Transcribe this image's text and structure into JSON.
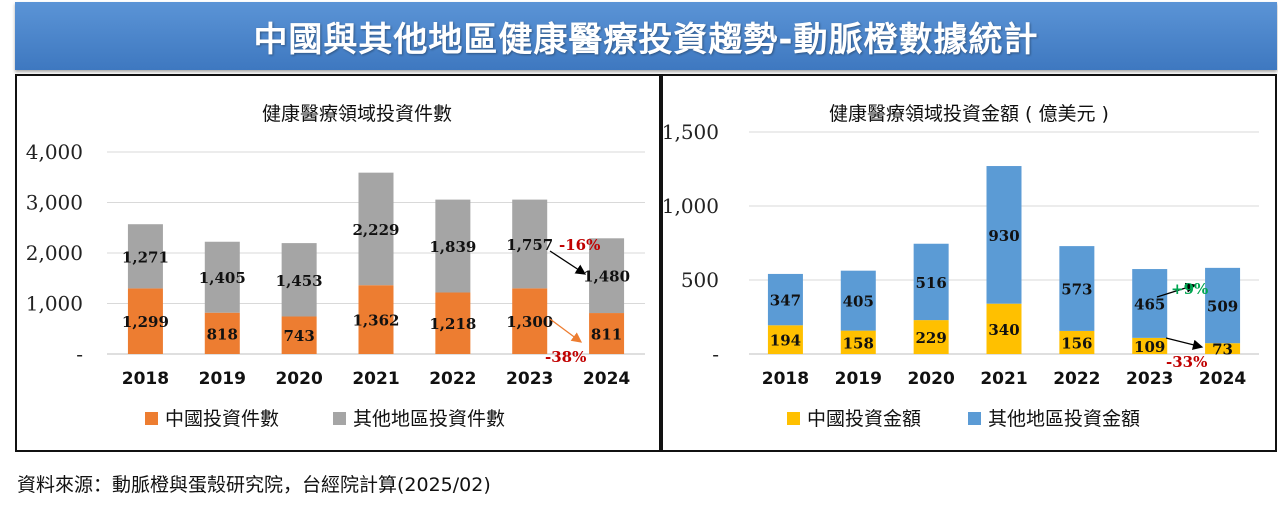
{
  "banner": {
    "title": "中國與其他地區健康醫療投資趨勢-動脈橙數據統計"
  },
  "source_note": "資料來源：動脈橙與蛋殼研究院，台經院計算(2025/02)",
  "chart_data": [
    {
      "type": "bar",
      "stacked": true,
      "title": "健康醫療領域投資件數",
      "categories": [
        "2018",
        "2019",
        "2020",
        "2021",
        "2022",
        "2023",
        "2024"
      ],
      "series": [
        {
          "name": "中國投資件數",
          "color": "#ed7d31",
          "values": [
            1299,
            818,
            743,
            1362,
            1218,
            1300,
            811
          ]
        },
        {
          "name": "其他地區投資件數",
          "color": "#a5a5a5",
          "values": [
            1271,
            1405,
            1453,
            2229,
            1839,
            1757,
            1480
          ]
        }
      ],
      "ylim": [
        0,
        4000
      ],
      "yticks": [
        "-",
        "1,000",
        "2,000",
        "3,000",
        "4,000"
      ],
      "grid": true,
      "legend": "bottom",
      "annotations": [
        {
          "text": "-16%",
          "color": "#c00000",
          "arrow_color": "#000000"
        },
        {
          "text": "-38%",
          "color": "#c00000",
          "arrow_color": "#ed7d31"
        }
      ]
    },
    {
      "type": "bar",
      "stacked": true,
      "title": "健康醫療領域投資金額 ( 億美元 )",
      "categories": [
        "2018",
        "2019",
        "2020",
        "2021",
        "2022",
        "2023",
        "2024"
      ],
      "series": [
        {
          "name": "中國投資金額",
          "color": "#ffc000",
          "values": [
            194,
            158,
            229,
            340,
            156,
            109,
            73
          ]
        },
        {
          "name": "其他地區投資金額",
          "color": "#5b9bd5",
          "values": [
            347,
            405,
            516,
            930,
            573,
            465,
            509
          ]
        }
      ],
      "ylim": [
        0,
        1500
      ],
      "yticks": [
        "-",
        "500",
        "1,000",
        "1,500"
      ],
      "grid": true,
      "legend": "bottom",
      "annotations": [
        {
          "text": "+9%",
          "color": "#00a651",
          "arrow_color": "#000000"
        },
        {
          "text": "-33%",
          "color": "#c00000",
          "arrow_color": "#000000"
        }
      ]
    }
  ]
}
